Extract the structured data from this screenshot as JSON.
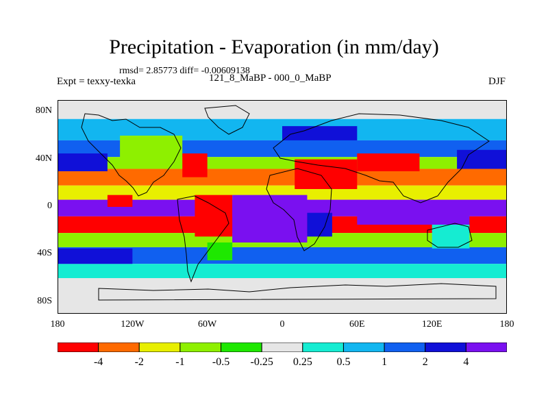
{
  "header": {
    "title": "Precipitation - Evaporation (in mm/day)",
    "stats": "rmsd= 2.85773 diff= -0.00609138",
    "experiment": "Expt = texxy-texka",
    "period": "121_8_MaBP - 000_0_MaBP",
    "season": "DJF"
  },
  "axes": {
    "y_ticks": [
      {
        "label": "80N",
        "lat": 80
      },
      {
        "label": "40N",
        "lat": 40
      },
      {
        "label": "0",
        "lat": 0
      },
      {
        "label": "40S",
        "lat": -40
      },
      {
        "label": "80S",
        "lat": -80
      }
    ],
    "x_ticks": [
      {
        "label": "180",
        "lon": -180
      },
      {
        "label": "120W",
        "lon": -120
      },
      {
        "label": "60W",
        "lon": -60
      },
      {
        "label": "0",
        "lon": 0
      },
      {
        "label": "60E",
        "lon": 60
      },
      {
        "label": "120E",
        "lon": 120
      },
      {
        "label": "180",
        "lon": 180
      }
    ],
    "lon_range": [
      -180,
      180
    ],
    "lat_range": [
      -90,
      90
    ]
  },
  "colorbar": {
    "colors": [
      "#ff0000",
      "#ff6a00",
      "#e8ef00",
      "#8ef000",
      "#1ee800",
      "#e6e6e6",
      "#15ecd2",
      "#12b6f0",
      "#1060f0",
      "#1010d8",
      "#7a10f0"
    ],
    "labels": [
      "-4",
      "-2",
      "-1",
      "-0.5",
      "-0.25",
      "0.25",
      "0.5",
      "1",
      "2",
      "4"
    ]
  },
  "map_data": {
    "variable": "Precipitation - Evaporation",
    "units": "mm/day",
    "zonal_bands": [
      {
        "lat_from": 90,
        "lat_to": 74,
        "level": 5
      },
      {
        "lat_from": 74,
        "lat_to": 56,
        "level": 7
      },
      {
        "lat_from": 56,
        "lat_to": 42,
        "level": 8
      },
      {
        "lat_from": 42,
        "lat_to": 32,
        "level": 3
      },
      {
        "lat_from": 32,
        "lat_to": 18,
        "level": 1
      },
      {
        "lat_from": 18,
        "lat_to": 6,
        "level": 2
      },
      {
        "lat_from": 6,
        "lat_to": -8,
        "level": 10
      },
      {
        "lat_from": -8,
        "lat_to": -22,
        "level": 0
      },
      {
        "lat_from": -22,
        "lat_to": -34,
        "level": 3
      },
      {
        "lat_from": -34,
        "lat_to": -48,
        "level": 8
      },
      {
        "lat_from": -48,
        "lat_to": -60,
        "level": 6
      },
      {
        "lat_from": -60,
        "lat_to": -90,
        "level": 5
      }
    ],
    "patches": [
      {
        "lon_from": -70,
        "lon_to": -40,
        "lat_from": 10,
        "lat_to": -25,
        "level": 0
      },
      {
        "lon_from": -40,
        "lon_to": 20,
        "lat_from": 10,
        "lat_to": -30,
        "level": 10
      },
      {
        "lon_from": 10,
        "lon_to": 60,
        "lat_from": 40,
        "lat_to": 15,
        "level": 0
      },
      {
        "lon_from": 60,
        "lon_to": 110,
        "lat_from": 45,
        "lat_to": 30,
        "level": 0
      },
      {
        "lon_from": 60,
        "lon_to": 150,
        "lat_from": 5,
        "lat_to": -15,
        "level": 10
      },
      {
        "lon_from": 120,
        "lon_to": 150,
        "lat_from": -15,
        "lat_to": -35,
        "level": 6
      },
      {
        "lon_from": -130,
        "lon_to": -80,
        "lat_from": 60,
        "lat_to": 35,
        "level": 3
      },
      {
        "lon_from": -80,
        "lon_to": -60,
        "lat_from": 45,
        "lat_to": 25,
        "level": 0
      },
      {
        "lon_from": -180,
        "lon_to": -140,
        "lat_from": 45,
        "lat_to": 30,
        "level": 9
      },
      {
        "lon_from": 140,
        "lon_to": 180,
        "lat_from": 48,
        "lat_to": 32,
        "level": 9
      },
      {
        "lon_from": -180,
        "lon_to": -120,
        "lat_from": -35,
        "lat_to": -48,
        "level": 9
      },
      {
        "lon_from": -60,
        "lon_to": -40,
        "lat_from": -30,
        "lat_to": -45,
        "level": 4
      },
      {
        "lon_from": 20,
        "lon_to": 40,
        "lat_from": -5,
        "lat_to": -25,
        "level": 9
      },
      {
        "lon_from": -140,
        "lon_to": -120,
        "lat_from": 10,
        "lat_to": 0,
        "level": 0
      },
      {
        "lon_from": 0,
        "lon_to": 60,
        "lat_from": 68,
        "lat_to": 56,
        "level": 9
      }
    ]
  }
}
